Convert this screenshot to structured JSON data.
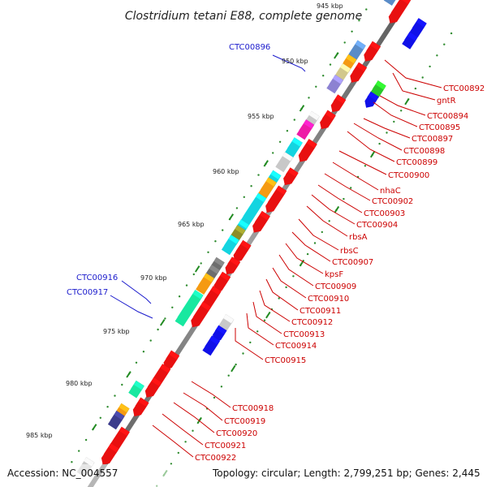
{
  "title": "Clostridium tetani E88, complete genome",
  "footer": {
    "accession": "Accession: NC_004557",
    "topology": "Topology: circular; Length: 2,799,251 bp; Genes: 2,445"
  },
  "colors": {
    "backbone": "#777777",
    "tick_dot": "#2e8b2e",
    "tick_major": "#228b22",
    "label_right": "#cc0000",
    "label_left": "#1a1acc",
    "gene_red": "#e81010",
    "gene_cyan": "#14d4e0",
    "gene_orange": "#f59a12",
    "gene_grey": "#c8c8c8",
    "gene_darkgrey": "#6e6e6e",
    "gene_green": "#28c828",
    "gene_teal": "#18e8a0",
    "gene_blue": "#1010e8",
    "gene_slate": "#3c3c8c",
    "gene_magenta": "#ee1aa6",
    "gene_olive": "#8c8c28",
    "gene_tan": "#d2c88c",
    "gene_steel": "#5a8cc8",
    "gene_lavender": "#8c82d2"
  },
  "scale_labels": [
    "945 kbp",
    "950 kbp",
    "955 kbp",
    "960 kbp",
    "965 kbp",
    "970 kbp",
    "975 kbp",
    "980 kbp",
    "985 kbp"
  ],
  "right_labels": [
    "CTC00892",
    "gntR",
    "CTC00894",
    "CTC00895",
    "CTC00897",
    "CTC00898",
    "CTC00899",
    "CTC00900",
    "nhaC",
    "CTC00902",
    "CTC00903",
    "CTC00904",
    "rbsA",
    "rbsC",
    "CTC00907",
    "kpsF",
    "CTC00909",
    "CTC00910",
    "CTC00911",
    "CTC00912",
    "CTC00913",
    "CTC00914",
    "CTC00915",
    "CTC00918",
    "CTC00919",
    "CTC00920",
    "CTC00921",
    "CTC00922"
  ],
  "left_labels": [
    "CTC00896",
    "CTC00916",
    "CTC00917"
  ]
}
